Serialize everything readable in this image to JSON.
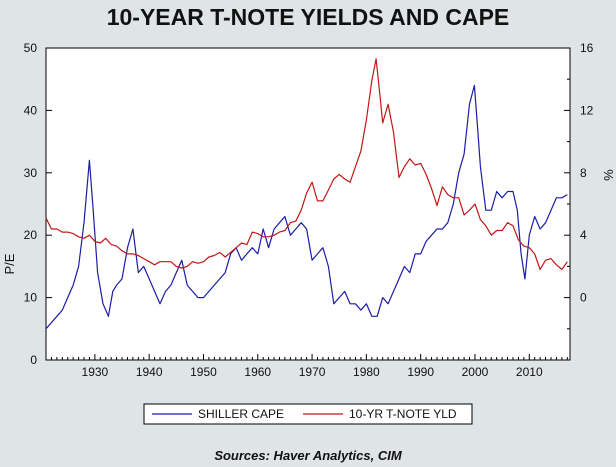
{
  "chart_data": {
    "type": "line",
    "title": "10-YEAR T-NOTE YIELDS AND CAPE",
    "source": "Sources:  Haver Analytics, CIM",
    "xlim": [
      1921,
      2017.5
    ],
    "x_ticks": [
      1930,
      1940,
      1950,
      1960,
      1970,
      1980,
      1990,
      2000,
      2010
    ],
    "left_axis": {
      "label": "P/E",
      "ylim": [
        0,
        50
      ],
      "ticks": [
        0,
        10,
        20,
        30,
        40,
        50
      ]
    },
    "right_axis": {
      "label": "%",
      "ylim": [
        -4,
        16
      ],
      "ticks": [
        0,
        4,
        8,
        12,
        16
      ]
    },
    "grid": false,
    "legend": {
      "placement": "bottom"
    },
    "series": [
      {
        "name": "SHILLER CAPE",
        "axis": "left",
        "color": "#1c1ca8",
        "x": [
          1921,
          1922,
          1923,
          1924,
          1925,
          1926,
          1927,
          1928,
          1929,
          1929.7,
          1930.5,
          1931.5,
          1932.5,
          1933.3,
          1934,
          1935,
          1936,
          1937,
          1938,
          1939,
          1940,
          1941,
          1942,
          1943,
          1944,
          1945,
          1946,
          1947,
          1948,
          1949,
          1950,
          1951,
          1952,
          1953,
          1954,
          1955,
          1956,
          1957,
          1958,
          1959,
          1960,
          1961,
          1962,
          1963,
          1964,
          1965,
          1966,
          1967,
          1968,
          1969,
          1970,
          1971,
          1972,
          1973,
          1974,
          1975,
          1976,
          1977,
          1978,
          1979,
          1980,
          1981,
          1982,
          1983,
          1984,
          1985,
          1986,
          1987,
          1988,
          1989,
          1990,
          1991,
          1992,
          1993,
          1994,
          1995,
          1996,
          1997,
          1998,
          1999,
          1999.9,
          2000.5,
          2001,
          2002,
          2003,
          2004,
          2005,
          2006,
          2007,
          2007.8,
          2008.5,
          2009.2,
          2010,
          2011,
          2012,
          2013,
          2014,
          2015,
          2016,
          2017
        ],
        "values": [
          5,
          6,
          7,
          8,
          10,
          12,
          15,
          22,
          32,
          24,
          14,
          9,
          7,
          11,
          12,
          13,
          18,
          21,
          14,
          15,
          13,
          11,
          9,
          11,
          12,
          14,
          16,
          12,
          11,
          10,
          10,
          11,
          12,
          13,
          14,
          17,
          18,
          16,
          17,
          18,
          17,
          21,
          18,
          21,
          22,
          23,
          20,
          21,
          22,
          21,
          16,
          17,
          18,
          15,
          9,
          10,
          11,
          9,
          9,
          8,
          9,
          7,
          7,
          10,
          9,
          11,
          13,
          15,
          14,
          17,
          17,
          19,
          20,
          21,
          21,
          22,
          25,
          30,
          33,
          41,
          44,
          37,
          31,
          24,
          24,
          27,
          26,
          27,
          27,
          24,
          17,
          13,
          20,
          23,
          21,
          22,
          24,
          26,
          26,
          26.5
        ]
      },
      {
        "name": "10-YR T-NOTE YLD",
        "axis": "right",
        "color": "#c01818",
        "x": [
          1921,
          1922,
          1923,
          1924,
          1925,
          1926,
          1927,
          1928,
          1929,
          1930,
          1931,
          1932,
          1933,
          1934,
          1935,
          1936,
          1937,
          1938,
          1939,
          1940,
          1941,
          1942,
          1943,
          1944,
          1945,
          1946,
          1947,
          1948,
          1949,
          1950,
          1951,
          1952,
          1953,
          1954,
          1955,
          1956,
          1957,
          1958,
          1959,
          1960,
          1961,
          1962,
          1963,
          1964,
          1965,
          1966,
          1967,
          1968,
          1969,
          1970,
          1971,
          1972,
          1973,
          1974,
          1975,
          1976,
          1977,
          1978,
          1979,
          1980,
          1981,
          1981.8,
          1982.5,
          1983,
          1984,
          1985,
          1986,
          1987,
          1988,
          1989,
          1990,
          1991,
          1992,
          1993,
          1994,
          1995,
          1996,
          1997,
          1998,
          1999,
          2000,
          2001,
          2002,
          2003,
          2004,
          2005,
          2006,
          2007,
          2008,
          2009,
          2010,
          2011,
          2012,
          2013,
          2014,
          2015,
          2016,
          2017
        ],
        "values": [
          5.1,
          4.4,
          4.4,
          4.2,
          4.2,
          4.1,
          3.9,
          3.8,
          4.0,
          3.6,
          3.5,
          3.8,
          3.4,
          3.3,
          3.0,
          2.8,
          2.8,
          2.7,
          2.5,
          2.3,
          2.1,
          2.3,
          2.3,
          2.3,
          2.0,
          1.9,
          2.0,
          2.3,
          2.2,
          2.3,
          2.6,
          2.7,
          2.9,
          2.6,
          2.9,
          3.2,
          3.5,
          3.4,
          4.2,
          4.1,
          3.9,
          3.9,
          4.0,
          4.2,
          4.3,
          4.8,
          4.9,
          5.6,
          6.7,
          7.4,
          6.2,
          6.2,
          6.9,
          7.6,
          7.9,
          7.6,
          7.4,
          8.4,
          9.4,
          11.4,
          13.9,
          15.3,
          13.0,
          11.2,
          12.4,
          10.6,
          7.7,
          8.4,
          8.9,
          8.5,
          8.6,
          7.9,
          7.0,
          5.9,
          7.1,
          6.6,
          6.4,
          6.4,
          5.3,
          5.6,
          6.0,
          5.0,
          4.6,
          4.0,
          4.3,
          4.3,
          4.8,
          4.6,
          3.7,
          3.3,
          3.2,
          2.8,
          1.8,
          2.4,
          2.5,
          2.1,
          1.8,
          2.3
        ]
      }
    ]
  }
}
